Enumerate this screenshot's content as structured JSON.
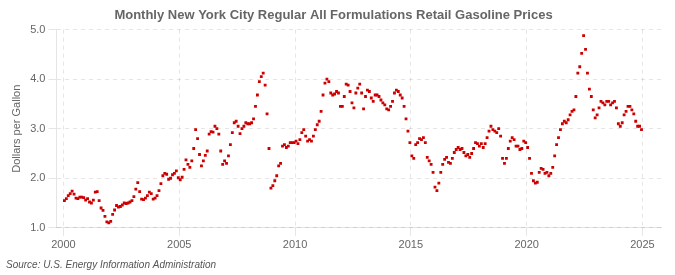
{
  "chart_data": {
    "type": "scatter",
    "title": "Monthly New York City Regular All Formulations Retail Gasoline Prices",
    "y_label": "Dollars per Gallon",
    "annotations": [
      "Source: U.S. Energy Information Administration"
    ],
    "color": "#CC0000",
    "marker": "square",
    "grid": true,
    "xlim": [
      1999.7,
      2025.8
    ],
    "ylim": [
      1.0,
      5.0
    ],
    "xticks": [
      2000,
      2005,
      2010,
      2015,
      2020,
      2025
    ],
    "yticks": [
      {
        "value": 1.0,
        "label": "1.0"
      },
      {
        "value": 2.0,
        "label": "2.0"
      },
      {
        "value": 3.0,
        "label": "3.0"
      },
      {
        "value": 4.0,
        "label": "4.0"
      },
      {
        "value": 5.0,
        "label": "5.0"
      }
    ],
    "x": [
      2000.0417,
      2000.125,
      2000.2083,
      2000.2917,
      2000.375,
      2000.4583,
      2000.5417,
      2000.625,
      2000.7083,
      2000.7917,
      2000.875,
      2000.9583,
      2001.0417,
      2001.125,
      2001.2083,
      2001.2917,
      2001.375,
      2001.4583,
      2001.5417,
      2001.625,
      2001.7083,
      2001.7917,
      2001.875,
      2001.9583,
      2002.0417,
      2002.125,
      2002.2083,
      2002.2917,
      2002.375,
      2002.4583,
      2002.5417,
      2002.625,
      2002.7083,
      2002.7917,
      2002.875,
      2002.9583,
      2003.0417,
      2003.125,
      2003.2083,
      2003.2917,
      2003.375,
      2003.4583,
      2003.5417,
      2003.625,
      2003.7083,
      2003.7917,
      2003.875,
      2003.9583,
      2004.0417,
      2004.125,
      2004.2083,
      2004.2917,
      2004.375,
      2004.4583,
      2004.5417,
      2004.625,
      2004.7083,
      2004.7917,
      2004.875,
      2004.9583,
      2005.0417,
      2005.125,
      2005.2083,
      2005.2917,
      2005.375,
      2005.4583,
      2005.5417,
      2005.625,
      2005.7083,
      2005.7917,
      2005.875,
      2005.9583,
      2006.0417,
      2006.125,
      2006.2083,
      2006.2917,
      2006.375,
      2006.4583,
      2006.5417,
      2006.625,
      2006.7083,
      2006.7917,
      2006.875,
      2006.9583,
      2007.0417,
      2007.125,
      2007.2083,
      2007.2917,
      2007.375,
      2007.4583,
      2007.5417,
      2007.625,
      2007.7083,
      2007.7917,
      2007.875,
      2007.9583,
      2008.0417,
      2008.125,
      2008.2083,
      2008.2917,
      2008.375,
      2008.4583,
      2008.5417,
      2008.625,
      2008.7083,
      2008.7917,
      2008.875,
      2008.9583,
      2009.0417,
      2009.125,
      2009.2083,
      2009.2917,
      2009.375,
      2009.4583,
      2009.5417,
      2009.625,
      2009.7083,
      2009.7917,
      2009.875,
      2009.9583,
      2010.0417,
      2010.125,
      2010.2083,
      2010.2917,
      2010.375,
      2010.4583,
      2010.5417,
      2010.625,
      2010.7083,
      2010.7917,
      2010.875,
      2010.9583,
      2011.0417,
      2011.125,
      2011.2083,
      2011.2917,
      2011.375,
      2011.4583,
      2011.5417,
      2011.625,
      2011.7083,
      2011.7917,
      2011.875,
      2011.9583,
      2012.0417,
      2012.125,
      2012.2083,
      2012.2917,
      2012.375,
      2012.4583,
      2012.5417,
      2012.625,
      2012.7083,
      2012.7917,
      2012.875,
      2012.9583,
      2013.0417,
      2013.125,
      2013.2083,
      2013.2917,
      2013.375,
      2013.4583,
      2013.5417,
      2013.625,
      2013.7083,
      2013.7917,
      2013.875,
      2013.9583,
      2014.0417,
      2014.125,
      2014.2083,
      2014.2917,
      2014.375,
      2014.4583,
      2014.5417,
      2014.625,
      2014.7083,
      2014.7917,
      2014.875,
      2014.9583,
      2015.0417,
      2015.125,
      2015.2083,
      2015.2917,
      2015.375,
      2015.4583,
      2015.5417,
      2015.625,
      2015.7083,
      2015.7917,
      2015.875,
      2015.9583,
      2016.0417,
      2016.125,
      2016.2083,
      2016.2917,
      2016.375,
      2016.4583,
      2016.5417,
      2016.625,
      2016.7083,
      2016.7917,
      2016.875,
      2016.9583,
      2017.0417,
      2017.125,
      2017.2083,
      2017.2917,
      2017.375,
      2017.4583,
      2017.5417,
      2017.625,
      2017.7083,
      2017.7917,
      2017.875,
      2017.9583,
      2018.0417,
      2018.125,
      2018.2083,
      2018.2917,
      2018.375,
      2018.4583,
      2018.5417,
      2018.625,
      2018.7083,
      2018.7917,
      2018.875,
      2018.9583,
      2019.0417,
      2019.125,
      2019.2083,
      2019.2917,
      2019.375,
      2019.4583,
      2019.5417,
      2019.625,
      2019.7083,
      2019.7917,
      2019.875,
      2019.9583,
      2020.0417,
      2020.125,
      2020.2083,
      2020.2917,
      2020.375,
      2020.4583,
      2020.5417,
      2020.625,
      2020.7083,
      2020.7917,
      2020.875,
      2020.9583,
      2021.0417,
      2021.125,
      2021.2083,
      2021.2917,
      2021.375,
      2021.4583,
      2021.5417,
      2021.625,
      2021.7083,
      2021.7917,
      2021.875,
      2021.9583,
      2022.0417,
      2022.125,
      2022.2083,
      2022.2917,
      2022.375,
      2022.4583,
      2022.5417,
      2022.625,
      2022.7083,
      2022.7917,
      2022.875,
      2022.9583,
      2023.0417,
      2023.125,
      2023.2083,
      2023.2917,
      2023.375,
      2023.4583,
      2023.5417,
      2023.625,
      2023.7083,
      2023.7917,
      2023.875,
      2023.9583,
      2024.0417,
      2024.125,
      2024.2083,
      2024.2917,
      2024.375,
      2024.4583,
      2024.5417,
      2024.625,
      2024.7083,
      2024.7917,
      2024.875,
      2024.9583
    ],
    "values": [
      1.55,
      1.59,
      1.65,
      1.69,
      1.74,
      1.68,
      1.6,
      1.59,
      1.62,
      1.62,
      1.61,
      1.56,
      1.59,
      1.52,
      1.5,
      1.56,
      1.72,
      1.73,
      1.55,
      1.4,
      1.35,
      1.23,
      1.12,
      1.1,
      1.13,
      1.27,
      1.36,
      1.45,
      1.42,
      1.43,
      1.46,
      1.5,
      1.49,
      1.5,
      1.52,
      1.55,
      1.63,
      1.78,
      1.91,
      1.73,
      1.58,
      1.57,
      1.6,
      1.65,
      1.72,
      1.69,
      1.58,
      1.6,
      1.65,
      1.75,
      1.89,
      2.05,
      2.1,
      2.08,
      1.98,
      2.0,
      2.07,
      2.1,
      2.15,
      2.01,
      1.97,
      2.02,
      2.18,
      2.37,
      2.28,
      2.22,
      2.35,
      2.6,
      2.98,
      2.8,
      2.48,
      2.25,
      2.35,
      2.46,
      2.55,
      2.89,
      2.94,
      2.93,
      3.05,
      3.0,
      2.89,
      2.55,
      2.28,
      2.35,
      2.3,
      2.45,
      2.68,
      2.92,
      3.12,
      3.15,
      3.05,
      2.9,
      3.0,
      3.05,
      3.12,
      3.1,
      3.1,
      3.12,
      3.2,
      3.45,
      3.68,
      3.95,
      4.05,
      4.12,
      3.88,
      3.3,
      2.6,
      1.8,
      1.85,
      1.95,
      2.05,
      2.25,
      2.3,
      2.65,
      2.68,
      2.62,
      2.65,
      2.72,
      2.72,
      2.72,
      2.75,
      2.7,
      2.78,
      2.92,
      2.98,
      2.85,
      2.75,
      2.78,
      2.75,
      2.85,
      2.98,
      3.08,
      3.15,
      3.35,
      3.68,
      3.92,
      4.0,
      3.95,
      3.72,
      3.68,
      3.7,
      3.75,
      3.72,
      3.45,
      3.45,
      3.65,
      3.9,
      3.88,
      3.75,
      3.52,
      3.42,
      3.72,
      3.82,
      3.9,
      3.72,
      3.4,
      3.65,
      3.78,
      3.75,
      3.62,
      3.55,
      3.68,
      3.68,
      3.65,
      3.58,
      3.52,
      3.48,
      3.4,
      3.38,
      3.45,
      3.55,
      3.72,
      3.78,
      3.75,
      3.68,
      3.62,
      3.45,
      3.2,
      2.95,
      2.72,
      2.45,
      2.4,
      2.68,
      2.72,
      2.8,
      2.78,
      2.82,
      2.72,
      2.42,
      2.35,
      2.28,
      2.12,
      1.82,
      1.75,
      1.9,
      2.12,
      2.28,
      2.38,
      2.42,
      2.32,
      2.3,
      2.4,
      2.52,
      2.58,
      2.62,
      2.58,
      2.6,
      2.52,
      2.45,
      2.48,
      2.42,
      2.5,
      2.6,
      2.72,
      2.7,
      2.65,
      2.7,
      2.62,
      2.7,
      2.82,
      2.95,
      3.05,
      2.98,
      2.95,
      2.92,
      3.0,
      2.85,
      2.4,
      2.3,
      2.4,
      2.6,
      2.75,
      2.82,
      2.78,
      2.65,
      2.65,
      2.58,
      2.6,
      2.75,
      2.72,
      2.62,
      2.4,
      2.1,
      1.95,
      1.9,
      1.92,
      2.12,
      2.2,
      2.18,
      2.1,
      2.12,
      2.05,
      2.1,
      2.22,
      2.45,
      2.68,
      2.82,
      2.98,
      3.1,
      3.15,
      3.12,
      3.18,
      3.28,
      3.35,
      3.38,
      3.65,
      4.12,
      4.25,
      4.52,
      4.88,
      4.6,
      4.12,
      3.8,
      3.65,
      3.38,
      3.22,
      3.28,
      3.42,
      3.55,
      3.52,
      3.48,
      3.55,
      3.55,
      3.48,
      3.52,
      3.55,
      3.42,
      3.1,
      3.05,
      3.12,
      3.28,
      3.35,
      3.45,
      3.45,
      3.38,
      3.3,
      3.15,
      3.05,
      3.05,
      2.98
    ]
  }
}
